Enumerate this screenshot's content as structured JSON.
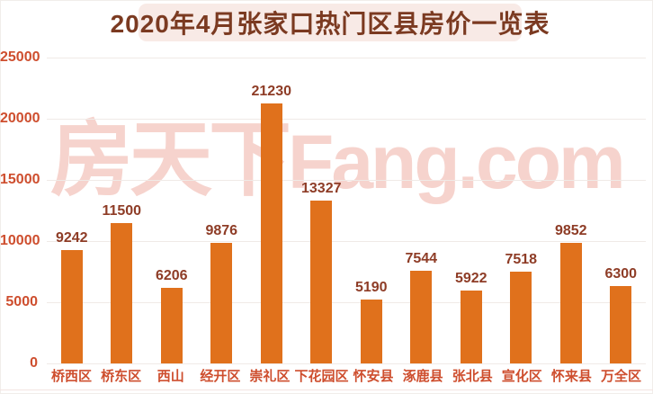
{
  "title": "2020年4月张家口热门区县房价一览表",
  "watermark": {
    "cn": "房天下",
    "en": "Fang.com"
  },
  "colors": {
    "background": "#ffffff",
    "banner_bg": "#f8eae6",
    "title_text": "#7b3a21",
    "bar": "#e0711c",
    "value_label": "#8e3c26",
    "axis_label": "#ce4e2e",
    "gridline": "#f0eae7",
    "watermark": "#f6d3cd"
  },
  "chart_data": {
    "type": "bar",
    "title": "2020年4月张家口热门区县房价一览表",
    "categories": [
      "桥西区",
      "桥东区",
      "西山",
      "经开区",
      "崇礼区",
      "下花园区",
      "怀安县",
      "涿鹿县",
      "张北县",
      "宣化区",
      "怀来县",
      "万全区"
    ],
    "values": [
      9242,
      11500,
      6206,
      9876,
      21230,
      13327,
      5190,
      7544,
      5922,
      7518,
      9852,
      6300
    ],
    "xlabel": "",
    "ylabel": "",
    "ylim": [
      0,
      25000
    ],
    "yticks": [
      0,
      5000,
      10000,
      15000,
      20000,
      25000
    ],
    "grid": true,
    "legend": false,
    "value_labels": true
  }
}
